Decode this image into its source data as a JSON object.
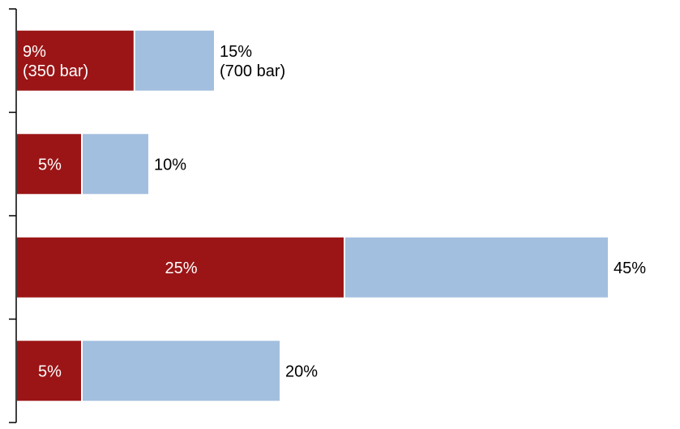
{
  "chart_data": {
    "type": "bar",
    "orientation": "horizontal",
    "stacked": true,
    "title": "",
    "xlabel": "",
    "ylabel": "",
    "categories": [
      "",
      "",
      "",
      ""
    ],
    "series": [
      {
        "color": "#9b1516",
        "label_color": "#ffffff",
        "values": [
          9,
          5,
          25,
          5
        ],
        "labels": [
          [
            "9%",
            "(350 bar)"
          ],
          [
            "5%"
          ],
          [
            "25%"
          ],
          [
            "5%"
          ]
        ]
      },
      {
        "color": "#a3bfdf",
        "label_color": "#000000",
        "values": [
          6,
          5,
          20,
          15
        ],
        "labels": [
          [
            "15%",
            "(700 bar)"
          ],
          [
            "10%"
          ],
          [
            "45%"
          ],
          [
            "20%"
          ]
        ]
      }
    ],
    "totals": [
      15,
      10,
      45,
      20
    ],
    "xlim": [
      0,
      48
    ],
    "grid": false,
    "legend": "none"
  }
}
